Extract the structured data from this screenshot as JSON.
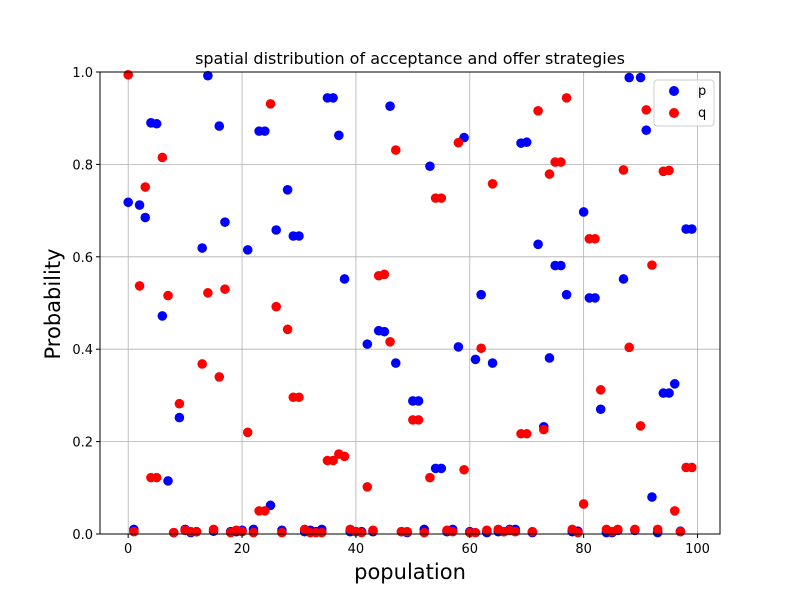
{
  "chart_data": {
    "type": "scatter",
    "title": "spatial distribution of acceptance and offer strategies",
    "xlabel": "population",
    "ylabel": "Probability",
    "xlim": [
      -4.95,
      103.95
    ],
    "ylim": [
      0,
      1
    ],
    "xticks": [
      0,
      20,
      40,
      60,
      80,
      100
    ],
    "yticks": [
      0.0,
      0.2,
      0.4,
      0.6,
      0.8,
      1.0
    ],
    "xtick_labels": [
      "0",
      "20",
      "40",
      "60",
      "80",
      "100"
    ],
    "ytick_labels": [
      "0.0",
      "0.2",
      "0.4",
      "0.6",
      "0.8",
      "1.0"
    ],
    "grid": true,
    "legend_position": "top-right",
    "series": [
      {
        "name": "p",
        "color": "#0000ff",
        "x": [
          0,
          1,
          2,
          3,
          4,
          5,
          6,
          7,
          8,
          9,
          10,
          11,
          12,
          13,
          14,
          15,
          16,
          17,
          18,
          19,
          20,
          21,
          22,
          23,
          24,
          25,
          26,
          27,
          28,
          29,
          30,
          31,
          32,
          33,
          34,
          35,
          36,
          37,
          38,
          39,
          40,
          41,
          42,
          43,
          44,
          45,
          46,
          47,
          48,
          49,
          50,
          51,
          52,
          53,
          54,
          55,
          56,
          57,
          58,
          59,
          60,
          61,
          62,
          63,
          64,
          65,
          66,
          67,
          68,
          69,
          70,
          71,
          72,
          73,
          74,
          75,
          76,
          77,
          78,
          79,
          80,
          81,
          82,
          83,
          84,
          85,
          86,
          87,
          88,
          89,
          90,
          91,
          92,
          93,
          94,
          95,
          96,
          97,
          98,
          99
        ],
        "y": [
          0.718,
          0.01,
          0.712,
          0.685,
          0.89,
          0.888,
          0.472,
          0.115,
          0.003,
          0.252,
          0.01,
          0.003,
          0.005,
          0.619,
          0.992,
          0.006,
          0.883,
          0.675,
          0.005,
          0.005,
          0.008,
          0.615,
          0.01,
          0.872,
          0.872,
          0.062,
          0.658,
          0.008,
          0.745,
          0.645,
          0.645,
          0.005,
          0.008,
          0.005,
          0.01,
          0.944,
          0.944,
          0.863,
          0.552,
          0.005,
          0.005,
          0.005,
          0.411,
          0.005,
          0.44,
          0.438,
          0.926,
          0.37,
          0.005,
          0.003,
          0.288,
          0.288,
          0.01,
          0.796,
          0.142,
          0.142,
          0.005,
          0.01,
          0.405,
          0.858,
          0.005,
          0.378,
          0.518,
          0.003,
          0.37,
          0.005,
          0.005,
          0.01,
          0.01,
          0.846,
          0.848,
          0.003,
          0.627,
          0.232,
          0.381,
          0.581,
          0.581,
          0.518,
          0.005,
          0.006,
          0.697,
          0.511,
          0.511,
          0.27,
          0.003,
          0.003,
          0.008,
          0.552,
          0.988,
          0.008,
          0.988,
          0.874,
          0.08,
          0.003,
          0.305,
          0.305,
          0.325,
          0.006,
          0.66,
          0.66
        ]
      },
      {
        "name": "q",
        "color": "#ff0000",
        "x": [
          0,
          1,
          2,
          3,
          4,
          5,
          6,
          7,
          8,
          9,
          10,
          11,
          12,
          13,
          14,
          15,
          16,
          17,
          18,
          19,
          20,
          21,
          22,
          23,
          24,
          25,
          26,
          27,
          28,
          29,
          30,
          31,
          32,
          33,
          34,
          35,
          36,
          37,
          38,
          39,
          40,
          41,
          42,
          43,
          44,
          45,
          46,
          47,
          48,
          49,
          50,
          51,
          52,
          53,
          54,
          55,
          56,
          57,
          58,
          59,
          60,
          61,
          62,
          63,
          64,
          65,
          66,
          67,
          68,
          69,
          70,
          71,
          72,
          73,
          74,
          75,
          76,
          77,
          78,
          79,
          80,
          81,
          82,
          83,
          84,
          85,
          86,
          87,
          88,
          89,
          90,
          91,
          92,
          93,
          94,
          95,
          96,
          97,
          98,
          99
        ],
        "y": [
          0.994,
          0.005,
          0.537,
          0.751,
          0.122,
          0.122,
          0.815,
          0.516,
          0.003,
          0.282,
          0.008,
          0.005,
          0.005,
          0.368,
          0.522,
          0.01,
          0.34,
          0.53,
          0.003,
          0.008,
          0.005,
          0.22,
          0.003,
          0.05,
          0.05,
          0.931,
          0.492,
          0.003,
          0.443,
          0.296,
          0.296,
          0.01,
          0.003,
          0.003,
          0.003,
          0.159,
          0.159,
          0.173,
          0.168,
          0.01,
          0.005,
          0.003,
          0.102,
          0.008,
          0.559,
          0.562,
          0.416,
          0.831,
          0.005,
          0.005,
          0.247,
          0.247,
          0.003,
          0.122,
          0.727,
          0.727,
          0.008,
          0.005,
          0.847,
          0.139,
          0.003,
          0.003,
          0.402,
          0.008,
          0.758,
          0.01,
          0.005,
          0.008,
          0.005,
          0.217,
          0.217,
          0.005,
          0.916,
          0.226,
          0.779,
          0.805,
          0.805,
          0.944,
          0.01,
          0.003,
          0.065,
          0.639,
          0.639,
          0.312,
          0.01,
          0.005,
          0.01,
          0.788,
          0.404,
          0.01,
          0.234,
          0.918,
          0.582,
          0.01,
          0.785,
          0.787,
          0.05,
          0.005,
          0.144,
          0.144
        ]
      }
    ]
  }
}
